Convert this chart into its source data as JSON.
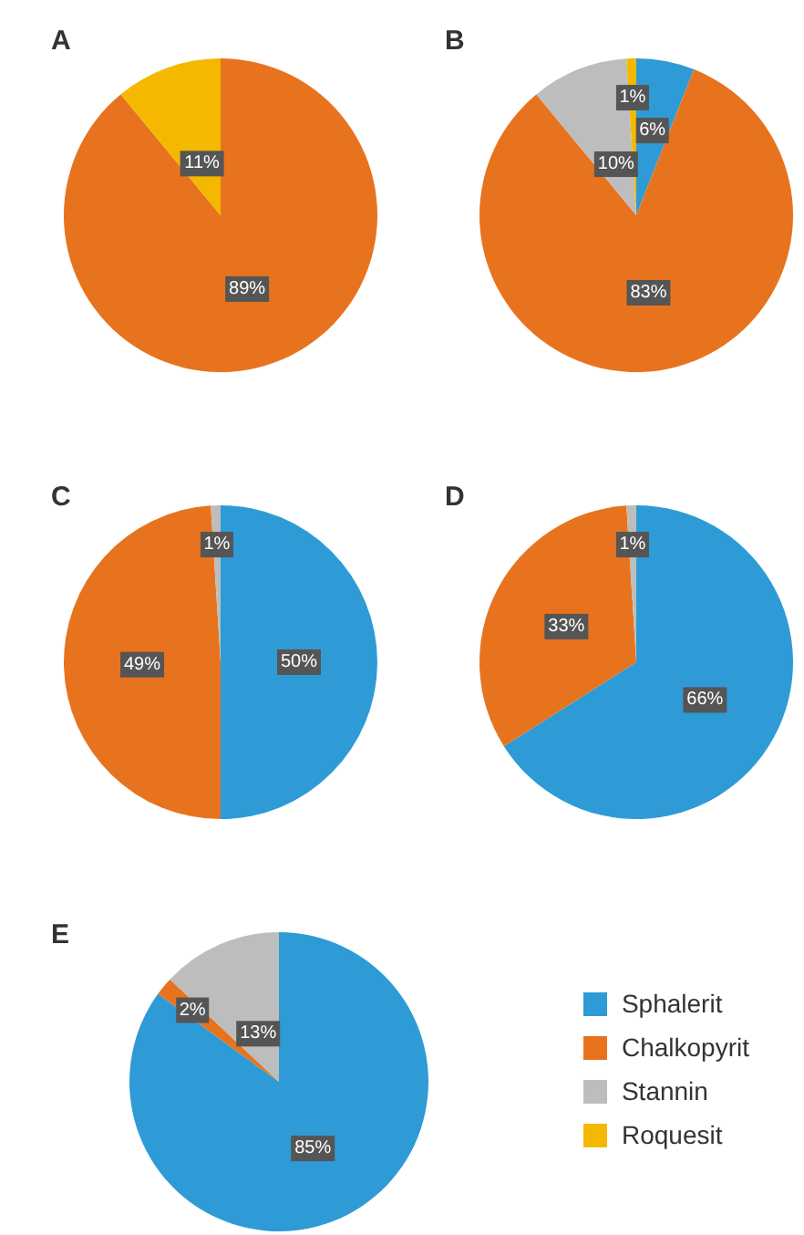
{
  "chart_data": [
    {
      "type": "pie",
      "title": "A",
      "categories": [
        null,
        null
      ],
      "values": [
        89,
        11
      ],
      "value_labels": [
        "89%",
        "11%"
      ],
      "colors": [
        "#e8731e",
        "#f5b800"
      ],
      "legend": false
    },
    {
      "type": "pie",
      "title": "B",
      "categories": [
        null,
        null,
        null,
        null
      ],
      "values": [
        6,
        83,
        10,
        1
      ],
      "value_labels": [
        "6%",
        "83%",
        "10%",
        "1%"
      ],
      "colors": [
        "#2e9bd6",
        "#e8731e",
        "#bdbdbd",
        "#f5b800"
      ],
      "legend": false
    },
    {
      "type": "pie",
      "title": "C",
      "categories": [
        null,
        null,
        null
      ],
      "values": [
        50,
        49,
        1
      ],
      "value_labels": [
        "50%",
        "49%",
        "1%"
      ],
      "colors": [
        "#2e9bd6",
        "#e8731e",
        "#bdbdbd"
      ],
      "legend": false
    },
    {
      "type": "pie",
      "title": "D",
      "categories": [
        null,
        null,
        null
      ],
      "values": [
        66,
        33,
        1
      ],
      "value_labels": [
        "66%",
        "33%",
        "1%"
      ],
      "colors": [
        "#2e9bd6",
        "#e8731e",
        "#bdbdbd"
      ],
      "legend": false
    },
    {
      "type": "pie",
      "title": "E",
      "categories": [
        "Sphalerit",
        "Chalkopyrit",
        "Stannin",
        "Roquesit"
      ],
      "values": [
        85,
        2,
        13,
        0
      ],
      "value_labels": [
        "85%",
        "2%",
        "13%",
        null
      ],
      "colors": [
        "#2e9bd6",
        "#e8731e",
        "#bdbdbd",
        "#f5b800"
      ],
      "legend": "right"
    }
  ]
}
